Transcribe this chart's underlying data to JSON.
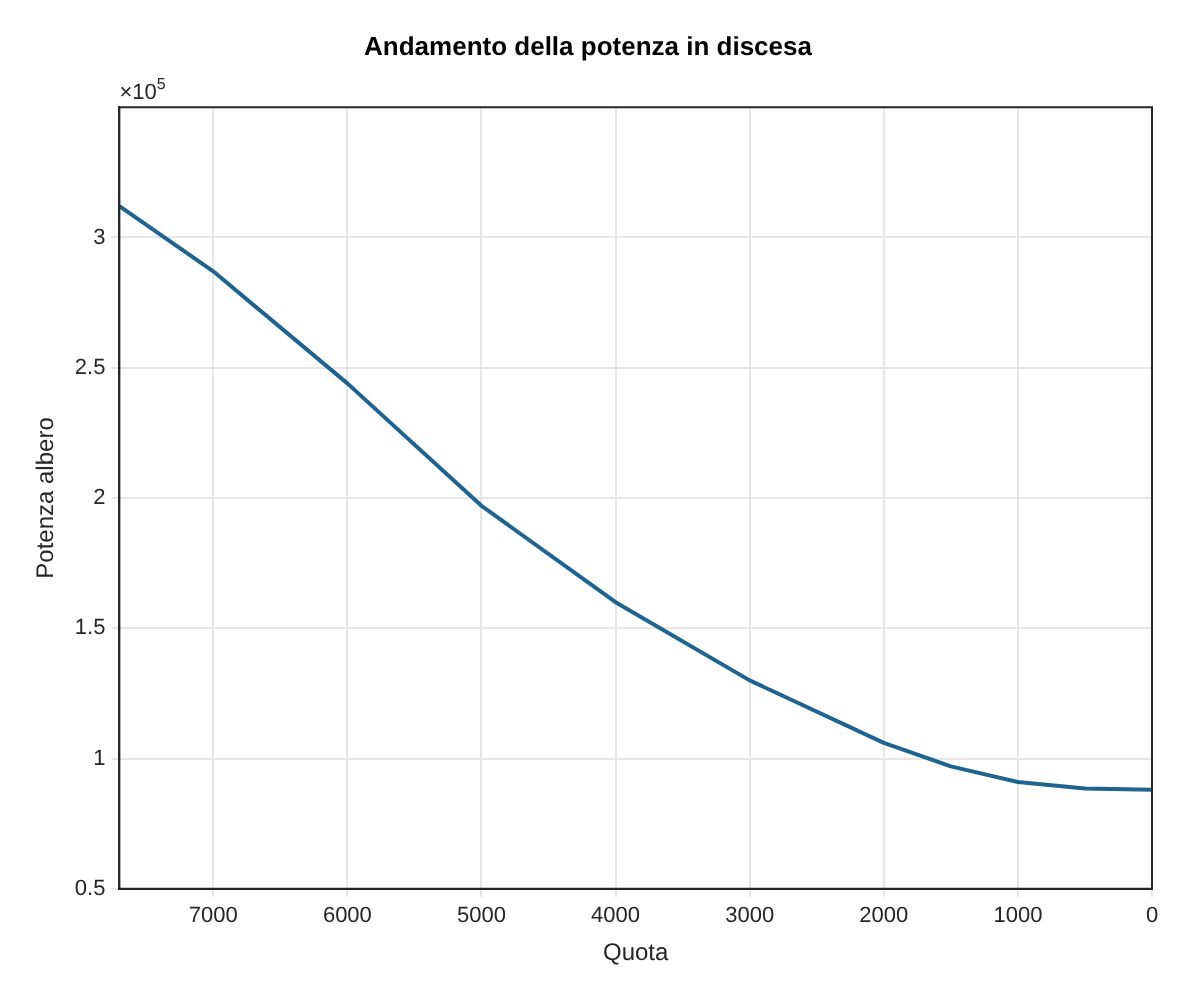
{
  "chart_data": {
    "type": "line",
    "title": "Andamento della potenza in discesa",
    "xlabel": "Quota",
    "ylabel": "Potenza albero",
    "annotations": [
      "×10$^{5}$"
    ],
    "x": [
      7700,
      7000,
      6000,
      5000,
      4000,
      3000,
      2000,
      1500,
      1000,
      500,
      0
    ],
    "series": [
      {
        "color": "#1f6390",
        "values": [
          3.12,
          2.87,
          2.44,
          1.97,
          1.6,
          1.3,
          1.06,
          0.97,
          0.91,
          0.885,
          0.88
        ]
      }
    ],
    "xlim": [
      7700,
      0
    ],
    "xticks": [
      7000,
      6000,
      5000,
      4000,
      3000,
      2000,
      1000,
      0
    ],
    "ylim": [
      0.5,
      3.5
    ],
    "yticks": [
      0.5,
      1,
      1.5,
      2,
      2.5,
      3
    ],
    "grid": true,
    "legend": false,
    "marker": "none",
    "line_style": "solid"
  }
}
